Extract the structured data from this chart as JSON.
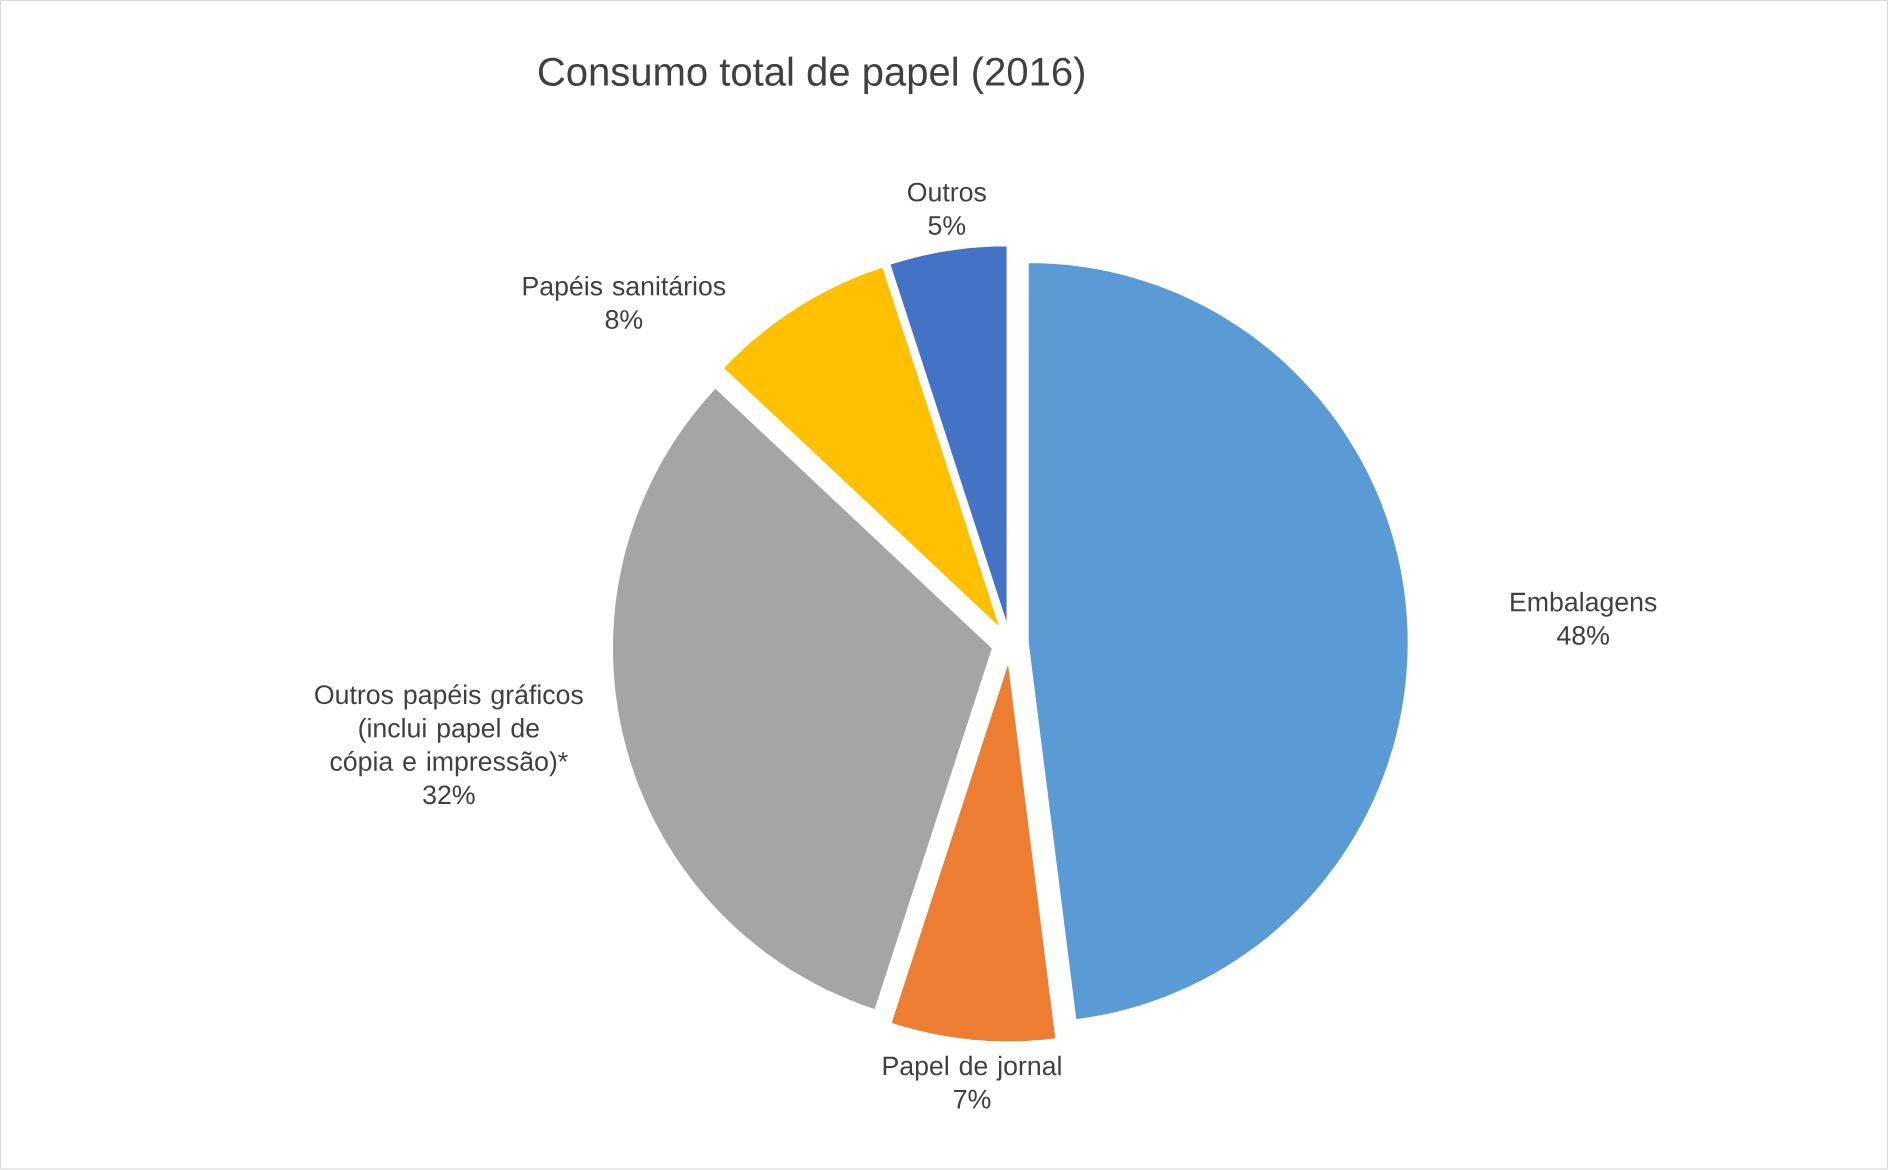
{
  "chart_data": {
    "type": "pie",
    "title": "Consumo  total de papel (2016)",
    "categories": [
      "Embalagens",
      "Papel de jornal",
      "Outros papéis gráficos (inclui papel de cópia e impressão)*",
      "Papéis sanitários",
      "Outros"
    ],
    "values": [
      48,
      7,
      32,
      8,
      5
    ],
    "value_labels": [
      "48%",
      "7%",
      "32%",
      "8%",
      "5%"
    ],
    "colors": [
      "#5b9bd5",
      "#ed7d31",
      "#a5a5a5",
      "#ffc000",
      "#4472c4"
    ]
  }
}
